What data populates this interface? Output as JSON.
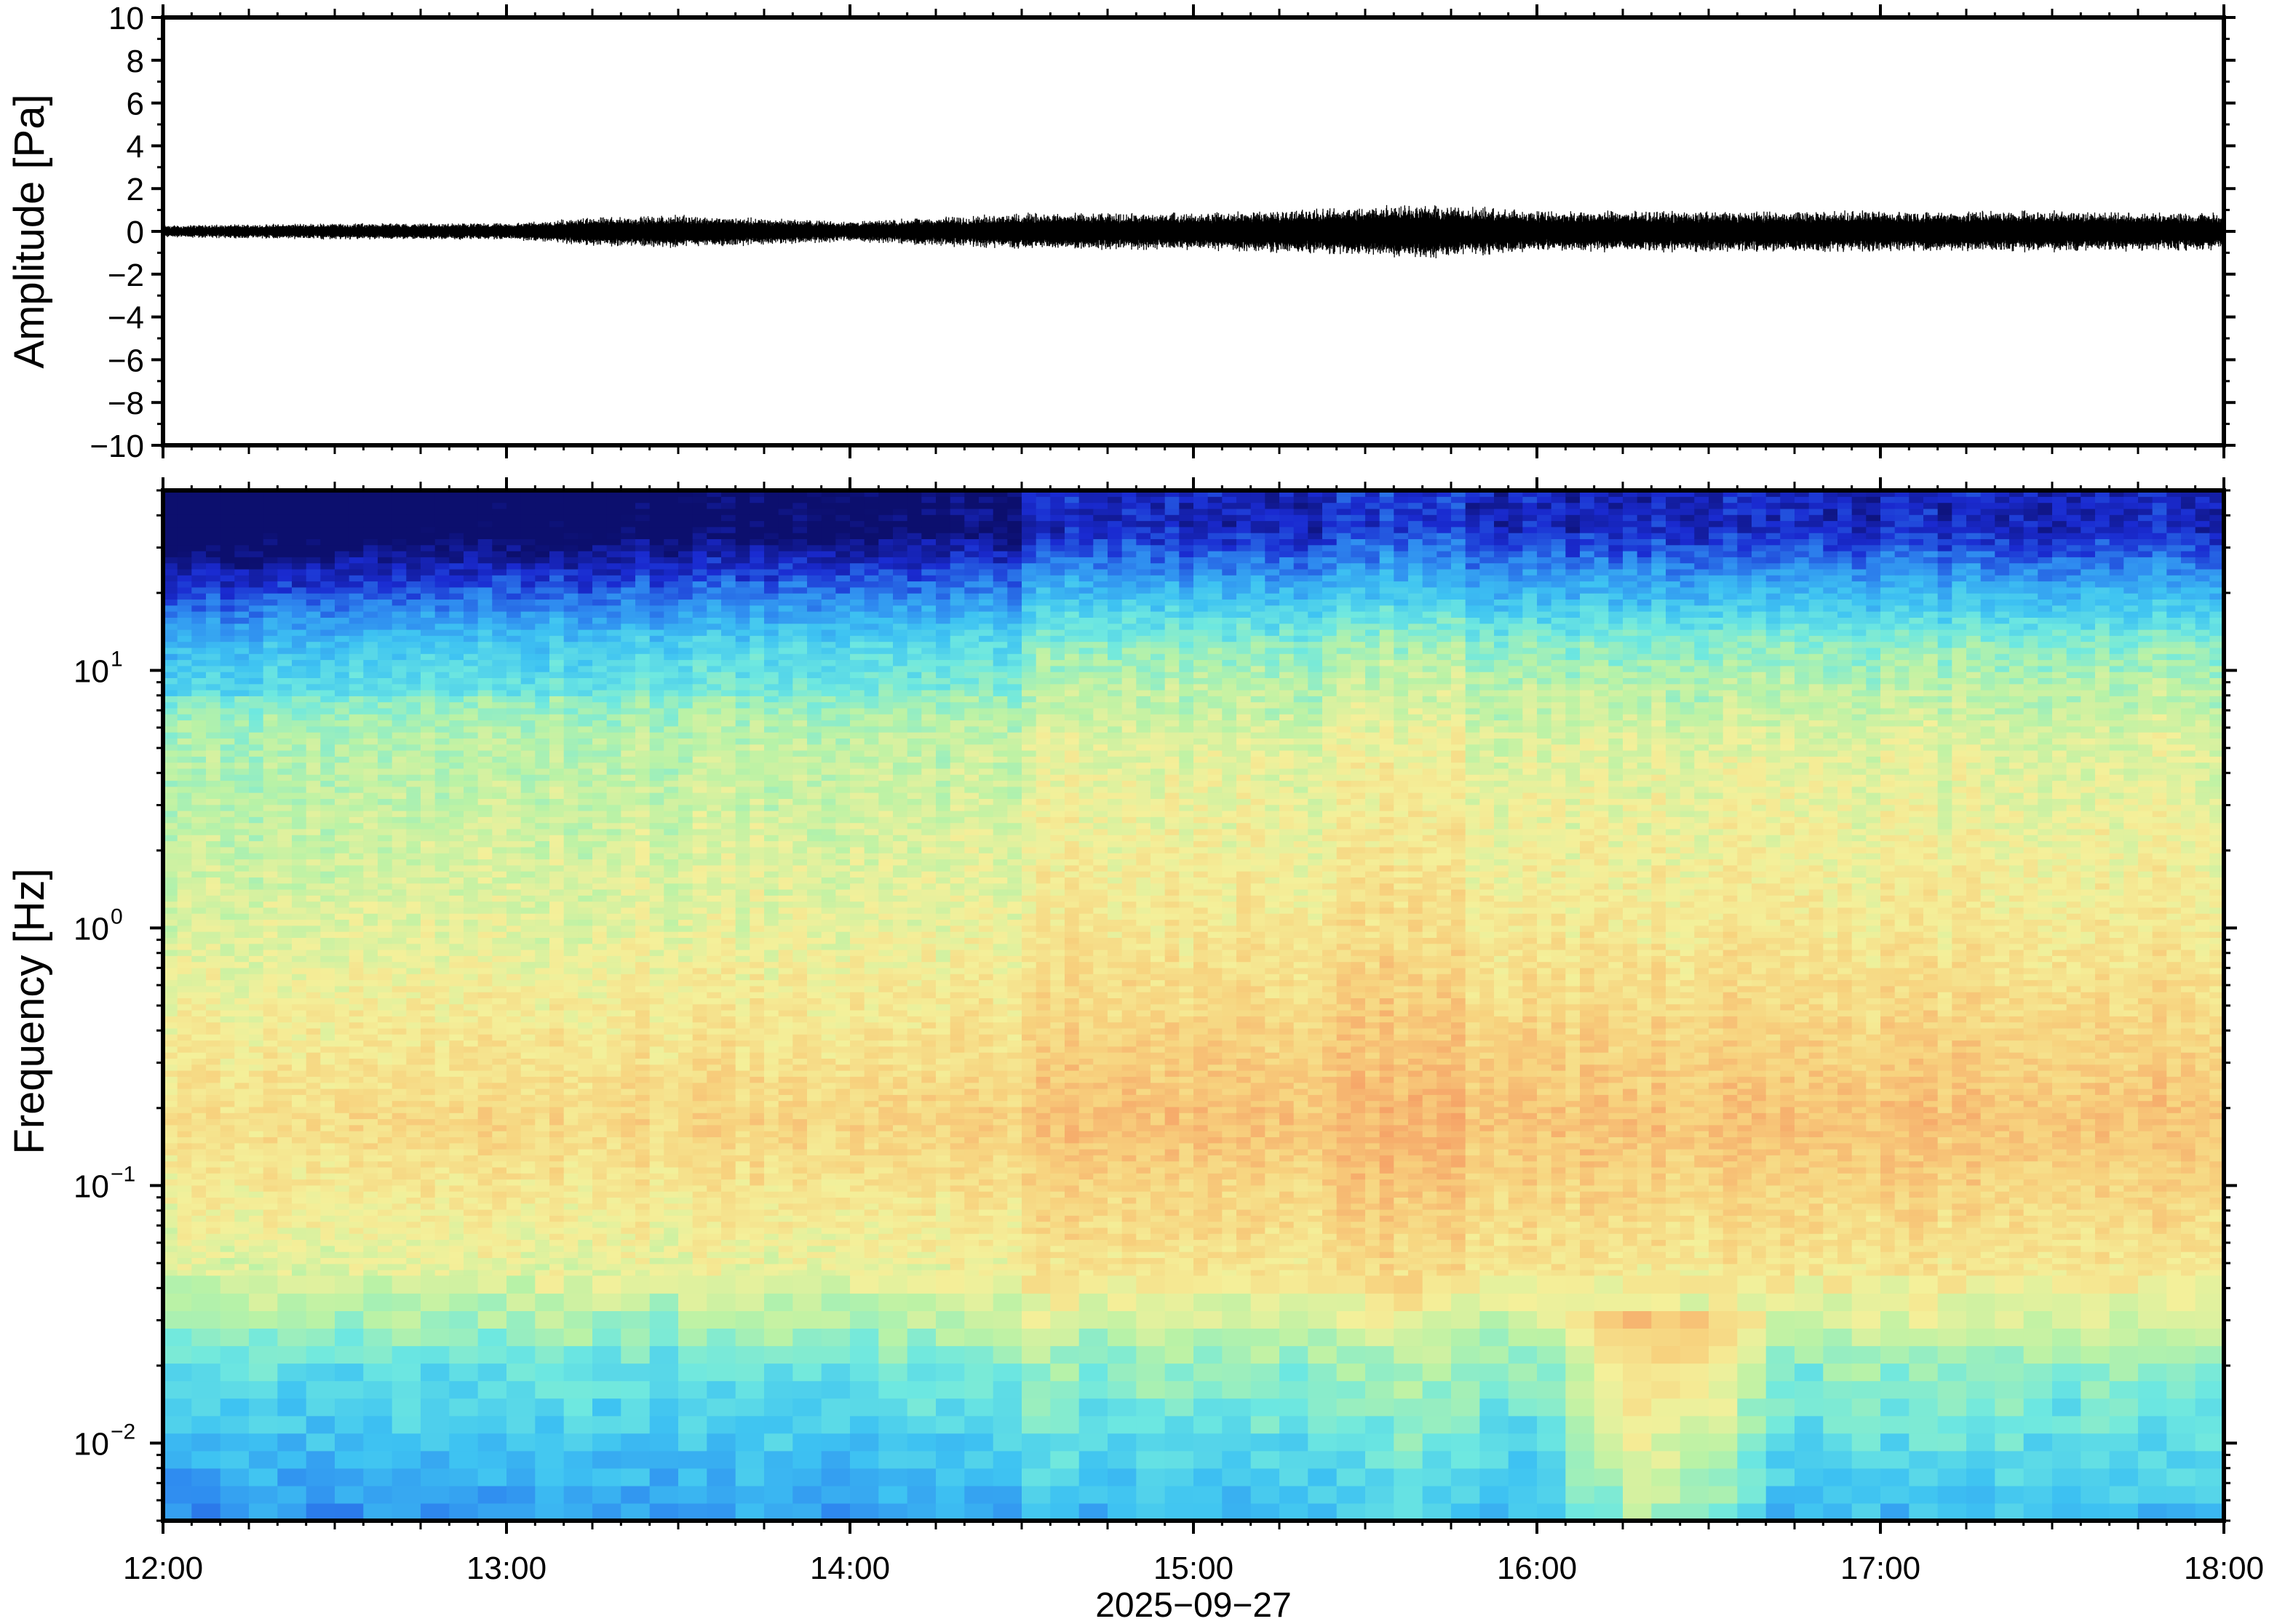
{
  "chart_data": [
    {
      "type": "line",
      "panel": "waveform",
      "ylabel": "Amplitude [Pa]",
      "ylim": [
        -10,
        10
      ],
      "yticks": [
        "10",
        "8",
        "6",
        "4",
        "2",
        "0",
        "−2",
        "−4",
        "−6",
        "−8",
        "−10"
      ],
      "ytick_values": [
        10,
        8,
        6,
        4,
        2,
        0,
        -2,
        -4,
        -6,
        -8,
        -10
      ],
      "xlim": [
        "12:00",
        "18:00"
      ],
      "series": [
        {
          "hours": [
            12.0,
            12.5,
            13.0,
            13.25,
            13.5,
            14.0,
            14.5,
            15.0,
            15.5,
            15.6,
            16.0,
            16.5,
            17.0,
            17.5,
            18.0
          ],
          "envelope": [
            0.3,
            0.4,
            0.4,
            0.7,
            0.8,
            0.5,
            0.9,
            0.9,
            1.2,
            1.4,
            1.0,
            1.0,
            1.0,
            1.0,
            0.9
          ],
          "color": "#000000"
        }
      ]
    },
    {
      "type": "heatmap",
      "panel": "spectrogram",
      "ylabel": "Frequency [Hz]",
      "xlabel": "2025−09−27",
      "yscale": "log",
      "ylim": [
        0.005,
        50
      ],
      "yticks": [
        {
          "base": "10",
          "exp": "1",
          "value": 10
        },
        {
          "base": "10",
          "exp": "0",
          "value": 1
        },
        {
          "base": "10",
          "exp": "−1",
          "value": 0.1
        },
        {
          "base": "10",
          "exp": "−2",
          "value": 0.01
        }
      ],
      "xticks": [
        "12:00",
        "13:00",
        "14:00",
        "15:00",
        "16:00",
        "17:00",
        "18:00"
      ],
      "xtick_hours": [
        12,
        13,
        14,
        15,
        16,
        17,
        18
      ],
      "colormap": [
        "#0c0f6e",
        "#1a2bd1",
        "#2f8cf0",
        "#3ec3f2",
        "#6ee8e0",
        "#b9f2a6",
        "#f4f09a",
        "#f7d27e",
        "#f6a96a",
        "#ee7a52"
      ],
      "grid": false
    }
  ]
}
